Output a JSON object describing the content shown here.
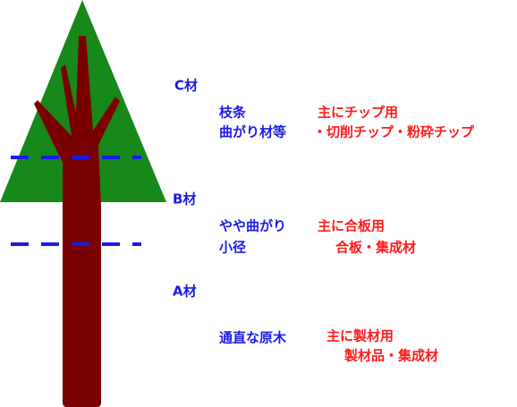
{
  "grades": [
    {
      "label": "C材",
      "types": [
        "枝条",
        "曲がり材等"
      ],
      "uses": [
        "主にチップ用",
        "・切削チップ・粉砕チップ"
      ]
    },
    {
      "label": "B材",
      "types": [
        "やや曲がり",
        "小径"
      ],
      "uses": [
        "主に合板用",
        "合板・集成材"
      ]
    },
    {
      "label": "A材",
      "types": [
        "通直な原木"
      ],
      "uses": [
        "主に製材用",
        "製材品・集成材"
      ]
    }
  ]
}
